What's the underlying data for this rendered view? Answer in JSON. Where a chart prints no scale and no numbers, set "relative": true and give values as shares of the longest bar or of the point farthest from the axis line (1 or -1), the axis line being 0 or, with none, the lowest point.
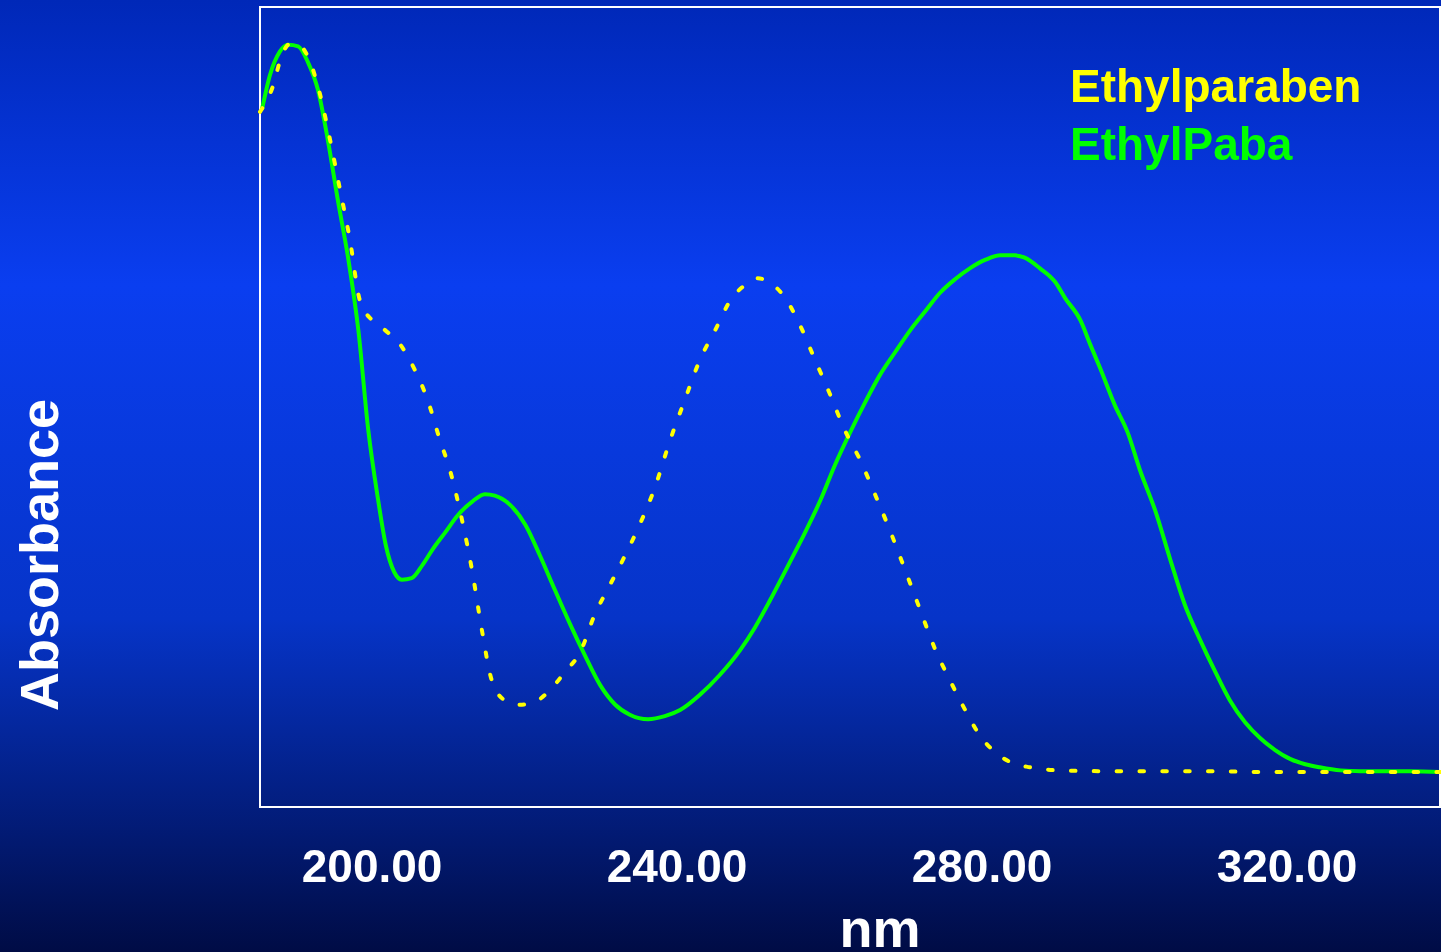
{
  "chart_data": {
    "type": "line",
    "xlabel": "nm",
    "ylabel": "Absorbance",
    "relative": true,
    "legend": "top right",
    "xlim": [
      185.3,
      340.2
    ],
    "xticks": [
      {
        "value": 200,
        "label": "200.00"
      },
      {
        "value": 240,
        "label": "240.00"
      },
      {
        "value": 280,
        "label": "280.00"
      },
      {
        "value": 320,
        "label": "320.00"
      }
    ],
    "series": [
      {
        "name": "Ethylparaben",
        "color": "#ffff00",
        "line_style": "dotted",
        "x": [
          185.3,
          186.9,
          188.2,
          189.2,
          190.6,
          191.9,
          193.2,
          194.5,
          195.8,
          197.1,
          198.4,
          200.0,
          201.7,
          203.7,
          205.6,
          207.3,
          208.9,
          210.2,
          211.8,
          213.1,
          214.4,
          215.7,
          217.4,
          219.4,
          221.4,
          223.3,
          225.3,
          227.3,
          229.2,
          231.2,
          233.2,
          235.1,
          237.1,
          239.1,
          241.0,
          243.0,
          245.0,
          247.0,
          248.9,
          250.6,
          252.2,
          254.2,
          256.1,
          258.1,
          260.1,
          262.0,
          264.0,
          266.0,
          267.9,
          269.9,
          271.9,
          273.8,
          275.8,
          277.8,
          279.7,
          281.7,
          283.7,
          286.3,
          290.2,
          295.5,
          302.0,
          308.6,
          316.5,
          324.3,
          332.2,
          340.2
        ],
        "values": [
          0.911,
          0.942,
          0.986,
          1.0,
          0.997,
          0.976,
          0.933,
          0.874,
          0.809,
          0.743,
          0.664,
          0.638,
          0.625,
          0.606,
          0.573,
          0.533,
          0.481,
          0.442,
          0.376,
          0.311,
          0.232,
          0.166,
          0.14,
          0.134,
          0.138,
          0.153,
          0.177,
          0.203,
          0.252,
          0.291,
          0.33,
          0.37,
          0.419,
          0.481,
          0.533,
          0.586,
          0.625,
          0.664,
          0.684,
          0.693,
          0.687,
          0.667,
          0.632,
          0.586,
          0.54,
          0.494,
          0.455,
          0.409,
          0.363,
          0.311,
          0.258,
          0.208,
          0.166,
          0.127,
          0.094,
          0.072,
          0.059,
          0.052,
          0.048,
          0.047,
          0.047,
          0.047,
          0.046,
          0.046,
          0.046,
          0.046
        ]
      },
      {
        "name": "EthylPaba",
        "color": "#00ff00",
        "line_style": "solid",
        "x": [
          185.6,
          186.6,
          187.9,
          189.0,
          190.3,
          191.6,
          192.9,
          194.2,
          195.5,
          196.9,
          198.2,
          199.5,
          200.8,
          201.8,
          202.9,
          203.9,
          205.2,
          206.6,
          207.9,
          209.6,
          211.3,
          213.1,
          214.8,
          216.1,
          218.1,
          220.1,
          222.0,
          224.0,
          226.0,
          227.9,
          229.9,
          231.9,
          233.8,
          236.2,
          238.4,
          240.4,
          243.0,
          245.6,
          248.3,
          250.2,
          252.2,
          254.8,
          256.8,
          258.8,
          260.7,
          262.7,
          264.7,
          266.6,
          268.6,
          270.6,
          272.5,
          274.5,
          276.5,
          278.4,
          280.4,
          282.4,
          284.3,
          285.6,
          287.6,
          289.6,
          290.9,
          292.9,
          294.2,
          295.5,
          297.4,
          299.1,
          300.7,
          302.7,
          304.7,
          306.6,
          308.6,
          310.6,
          312.5,
          314.5,
          316.5,
          318.4,
          320.4,
          322.4,
          324.3,
          327.0,
          329.6,
          332.2,
          336.1,
          340.2
        ],
        "values": [
          0.916,
          0.959,
          0.99,
          0.999,
          0.997,
          0.976,
          0.94,
          0.874,
          0.796,
          0.717,
          0.625,
          0.494,
          0.402,
          0.343,
          0.308,
          0.298,
          0.3,
          0.317,
          0.337,
          0.36,
          0.383,
          0.4,
          0.41,
          0.408,
          0.396,
          0.37,
          0.33,
          0.284,
          0.239,
          0.199,
          0.16,
          0.134,
          0.121,
          0.115,
          0.119,
          0.127,
          0.147,
          0.173,
          0.206,
          0.235,
          0.271,
          0.321,
          0.36,
          0.402,
          0.448,
          0.491,
          0.531,
          0.566,
          0.596,
          0.625,
          0.649,
          0.674,
          0.692,
          0.706,
          0.717,
          0.723,
          0.723,
          0.72,
          0.706,
          0.688,
          0.667,
          0.638,
          0.606,
          0.575,
          0.527,
          0.491,
          0.442,
          0.389,
          0.324,
          0.265,
          0.219,
          0.177,
          0.14,
          0.111,
          0.09,
          0.075,
          0.063,
          0.056,
          0.052,
          0.048,
          0.047,
          0.047,
          0.047,
          0.046
        ]
      }
    ]
  }
}
